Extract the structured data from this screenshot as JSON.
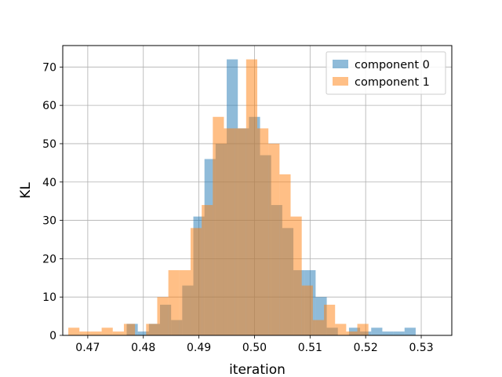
{
  "chart_data": {
    "type": "bar",
    "subtype": "overlapping-histogram",
    "title": "",
    "xlabel": "iteration",
    "ylabel": "KL",
    "xlim": [
      0.4655,
      0.5355
    ],
    "ylim": [
      0,
      75.6
    ],
    "xticks": [
      0.47,
      0.48,
      0.49,
      0.5,
      0.51,
      0.52,
      0.53
    ],
    "xtick_labels": [
      "0.47",
      "0.48",
      "0.49",
      "0.50",
      "0.51",
      "0.52",
      "0.53"
    ],
    "yticks": [
      0,
      10,
      20,
      30,
      40,
      50,
      60,
      70
    ],
    "ytick_labels": [
      "0",
      "10",
      "20",
      "30",
      "40",
      "50",
      "60",
      "70"
    ],
    "grid": true,
    "legend_position": "top-right",
    "series": [
      {
        "name": "component 0",
        "color": "#1f77b4",
        "alpha": 0.5,
        "bin_start": 0.477,
        "bin_width": 0.002,
        "values": [
          3,
          1,
          3,
          8,
          4,
          13,
          31,
          46,
          50,
          72,
          54,
          57,
          47,
          34,
          28,
          17,
          17,
          10,
          2,
          0,
          2,
          1,
          2,
          1,
          1,
          2
        ]
      },
      {
        "name": "component 1",
        "color": "#ff7f0e",
        "alpha": 0.5,
        "bin_start": 0.4665,
        "bin_width": 0.002,
        "values": [
          2,
          1,
          1,
          2,
          1,
          3,
          0,
          3,
          10,
          17,
          17,
          28,
          34,
          57,
          54,
          54,
          72,
          54,
          50,
          42,
          31,
          13,
          4,
          8,
          3,
          1,
          3
        ]
      }
    ]
  }
}
